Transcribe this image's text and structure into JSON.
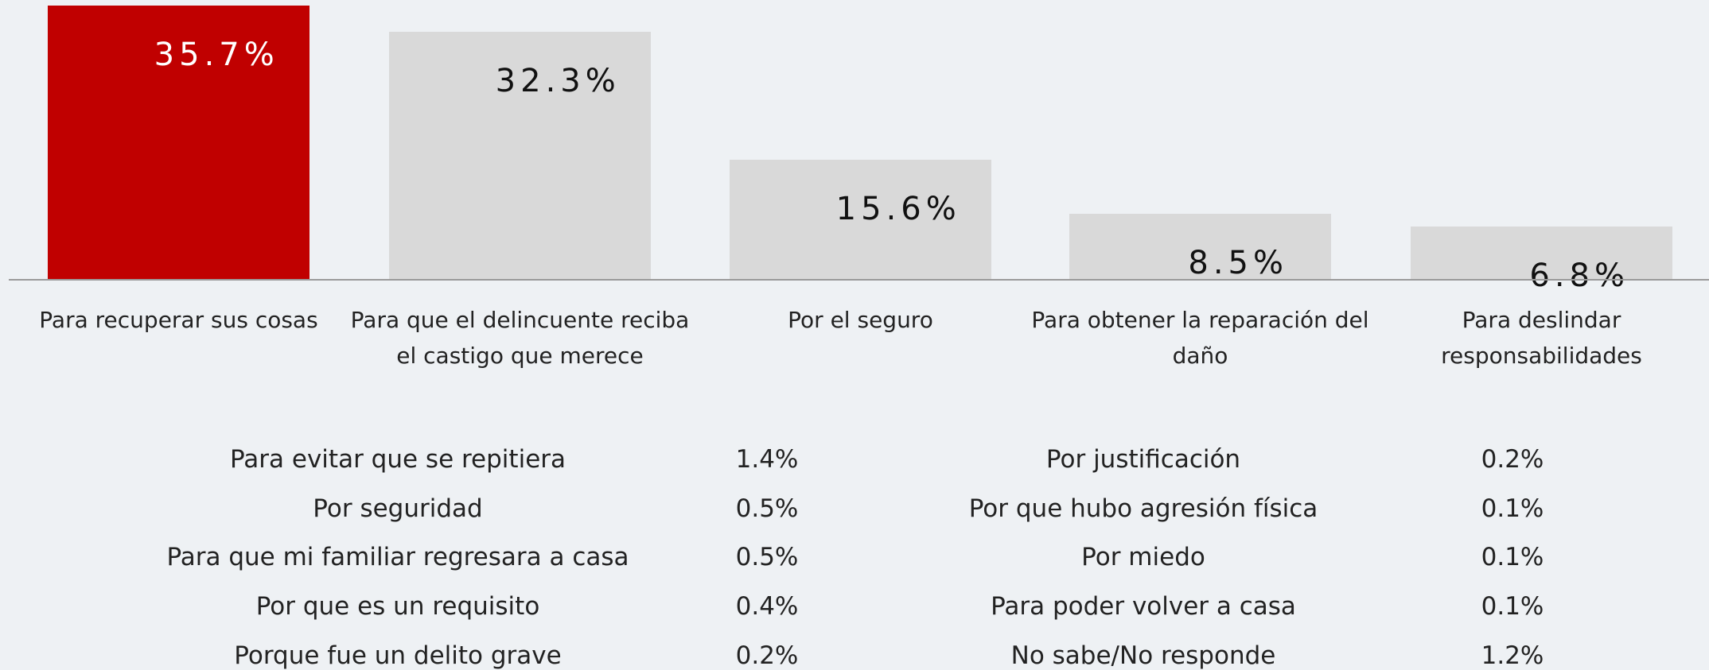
{
  "chart_data": {
    "type": "bar",
    "categories": [
      "Para recuperar sus cosas",
      "Para que el delincuente reciba el castigo que merece",
      "Por el seguro",
      "Para obtener la reparación del daño",
      "Para deslindar responsabilidades"
    ],
    "values": [
      35.7,
      32.3,
      15.6,
      8.5,
      6.8
    ],
    "value_labels": [
      "35.7%",
      "32.3%",
      "15.6%",
      "8.5%",
      "6.8%"
    ],
    "colors": [
      "#c00000",
      "#d9d9d9",
      "#d9d9d9",
      "#d9d9d9",
      "#d9d9d9"
    ]
  },
  "table": {
    "rows": [
      [
        "Para evitar que se repitiera",
        "1.4%",
        "Por justificación",
        "0.2%"
      ],
      [
        "Por seguridad",
        "0.5%",
        "Por que hubo agresión física",
        "0.1%"
      ],
      [
        "Para que mi familiar regresara a casa",
        "0.5%",
        "Por miedo",
        "0.1%"
      ],
      [
        "Por que es un requisito",
        "0.4%",
        "Para poder volver a casa",
        "0.1%"
      ],
      [
        "Porque fue un delito grave",
        "0.2%",
        "No sabe/No responde",
        "1.2%"
      ]
    ]
  }
}
